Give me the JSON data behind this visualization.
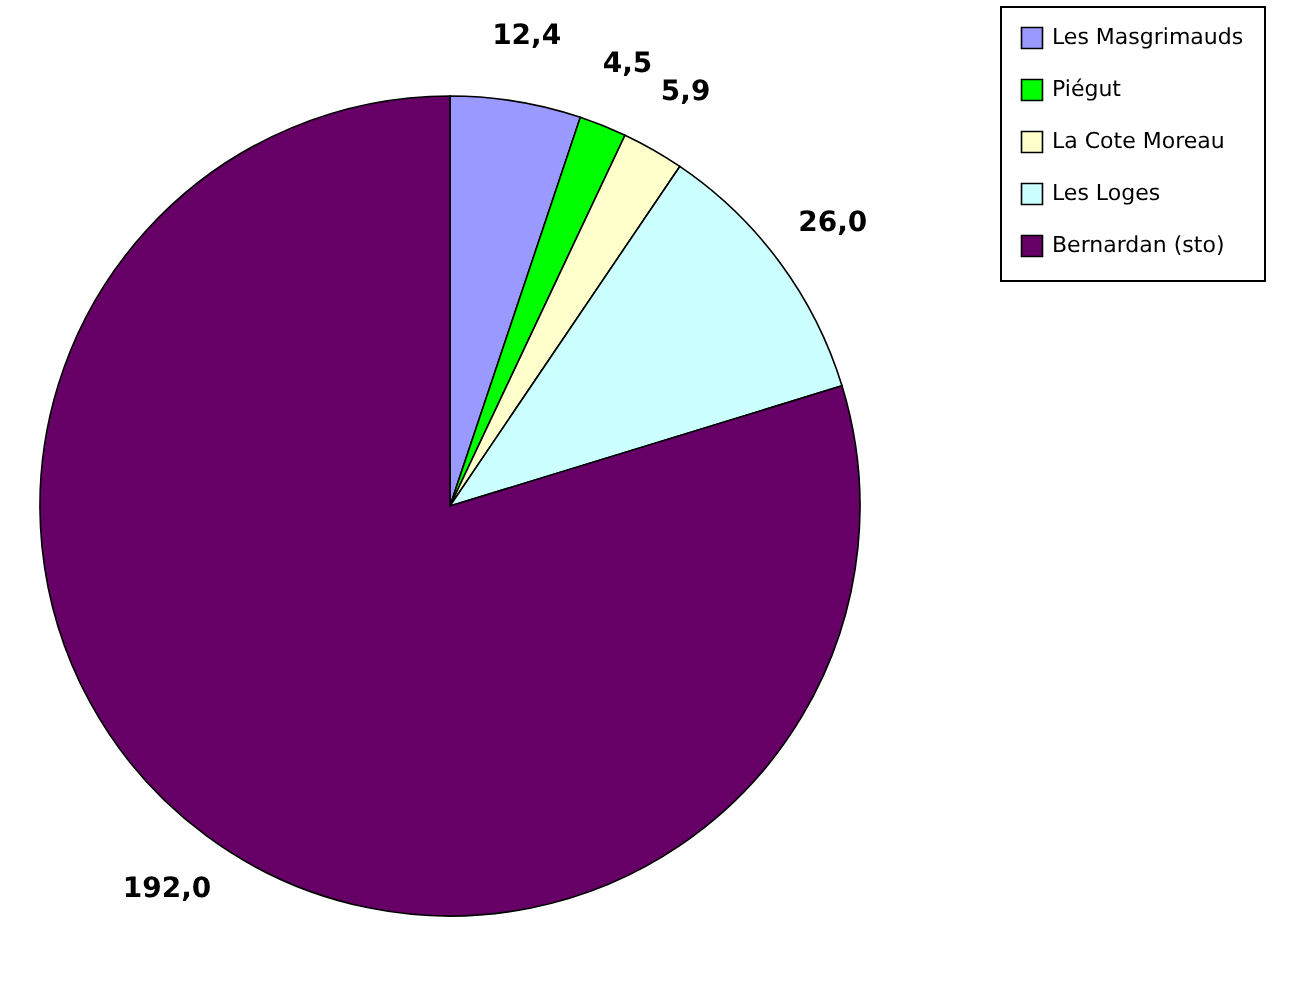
{
  "chart_data": {
    "type": "pie",
    "categories": [
      "Les Masgrimauds",
      "Piégut",
      "La Cote Moreau",
      "Les Loges",
      "Bernardan (sto)"
    ],
    "values": [
      12.4,
      4.5,
      5.9,
      26.0,
      192.0
    ],
    "value_labels": [
      "12,4",
      "4,5",
      "5,9",
      "26,0",
      "192,0"
    ],
    "colors": [
      "#9999ff",
      "#00ff00",
      "#ffffcc",
      "#ccffff",
      "#660066"
    ],
    "legend": "right"
  }
}
